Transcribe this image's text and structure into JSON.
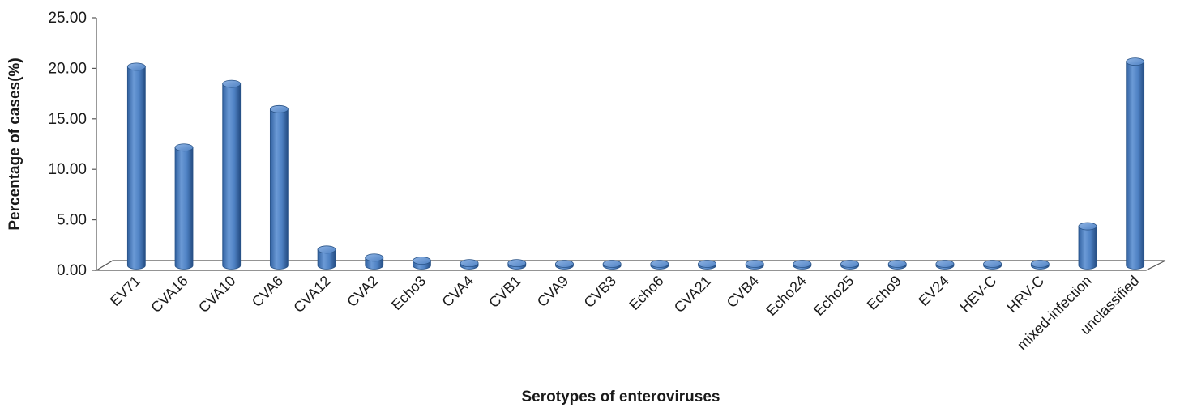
{
  "chart_data": {
    "type": "bar",
    "title": "",
    "xlabel": "Serotypes of enteroviruses",
    "ylabel": "Percentage of cases(%)",
    "ylim": [
      0,
      25
    ],
    "yticks": [
      "0.00",
      "5.00",
      "10.00",
      "15.00",
      "20.00",
      "25.00"
    ],
    "grid": false,
    "legend": "none",
    "bar_color": "#4a7ebf",
    "categories": [
      "EV71",
      "CVA16",
      "CVA10",
      "CVA6",
      "CVA12",
      "CVA2",
      "Echo3",
      "CVA4",
      "CVB1",
      "CVA9",
      "CVB3",
      "Echo6",
      "CVA21",
      "CVB4",
      "Echo24",
      "Echo25",
      "Echo9",
      "EV24",
      "HEV-C",
      "HRV-C",
      "mixed-infection",
      "unclassified"
    ],
    "values": [
      20.0,
      12.0,
      18.3,
      15.8,
      1.9,
      1.1,
      0.8,
      0.55,
      0.55,
      0.3,
      0.3,
      0.3,
      0.1,
      0.1,
      0.1,
      0.1,
      0.1,
      0.1,
      0.1,
      0.1,
      4.2,
      20.5
    ]
  }
}
